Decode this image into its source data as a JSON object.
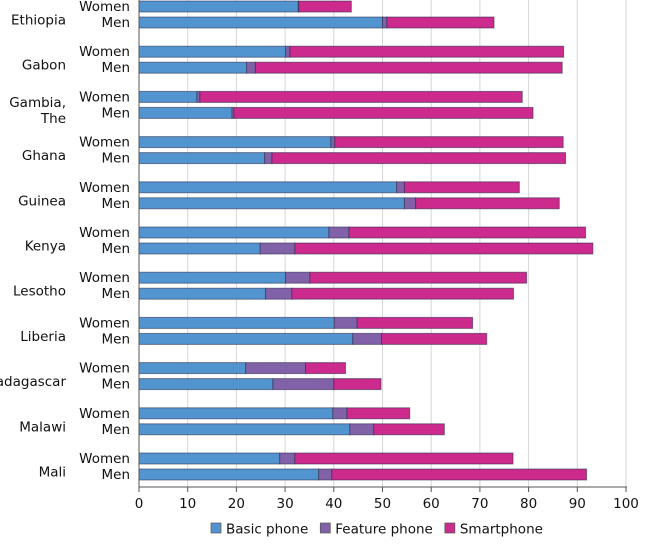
{
  "chart_data": {
    "type": "bar",
    "orientation": "horizontal",
    "stacked": true,
    "categories": [
      "Ethiopia",
      "Gabon",
      "Gambia, The",
      "Ghana",
      "Guinea",
      "Kenya",
      "Lesotho",
      "Liberia",
      "Madagascar",
      "Malawi",
      "Mali"
    ],
    "subgroups": [
      "Women",
      "Men"
    ],
    "series": [
      {
        "name": "Basic phone",
        "color": "#5294d0",
        "values": [
          [
            32.7,
            50.0
          ],
          [
            30.1,
            22.1
          ],
          [
            11.9,
            19.1
          ],
          [
            39.4,
            25.8
          ],
          [
            52.9,
            54.5
          ],
          [
            39.0,
            24.9
          ],
          [
            30.1,
            26.0
          ],
          [
            40.1,
            43.9
          ],
          [
            21.9,
            27.5
          ],
          [
            39.8,
            43.3
          ],
          [
            28.9,
            36.9
          ]
        ]
      },
      {
        "name": "Feature phone",
        "color": "#8162a8",
        "values": [
          [
            0.1,
            0.9
          ],
          [
            0.9,
            1.8
          ],
          [
            0.6,
            0.4
          ],
          [
            0.8,
            1.5
          ],
          [
            1.6,
            2.3
          ],
          [
            4.1,
            7.1
          ],
          [
            5.0,
            5.4
          ],
          [
            4.7,
            5.9
          ],
          [
            12.3,
            12.5
          ],
          [
            2.9,
            4.9
          ],
          [
            3.1,
            2.7
          ]
        ]
      },
      {
        "name": "Smartphone",
        "color": "#cc2a8c",
        "values": [
          [
            10.8,
            22.0
          ],
          [
            56.2,
            63.0
          ],
          [
            66.2,
            61.4
          ],
          [
            46.9,
            60.3
          ],
          [
            23.6,
            29.5
          ],
          [
            48.6,
            61.2
          ],
          [
            44.5,
            45.5
          ],
          [
            23.7,
            21.6
          ],
          [
            8.2,
            9.7
          ],
          [
            12.9,
            14.5
          ],
          [
            44.8,
            52.3
          ]
        ]
      }
    ],
    "xlim": [
      0,
      100
    ],
    "xticks": [
      "0",
      "10",
      "20",
      "30",
      "40",
      "50",
      "60",
      "70",
      "80",
      "90",
      "100"
    ],
    "grid": true,
    "legend": "bottom"
  }
}
